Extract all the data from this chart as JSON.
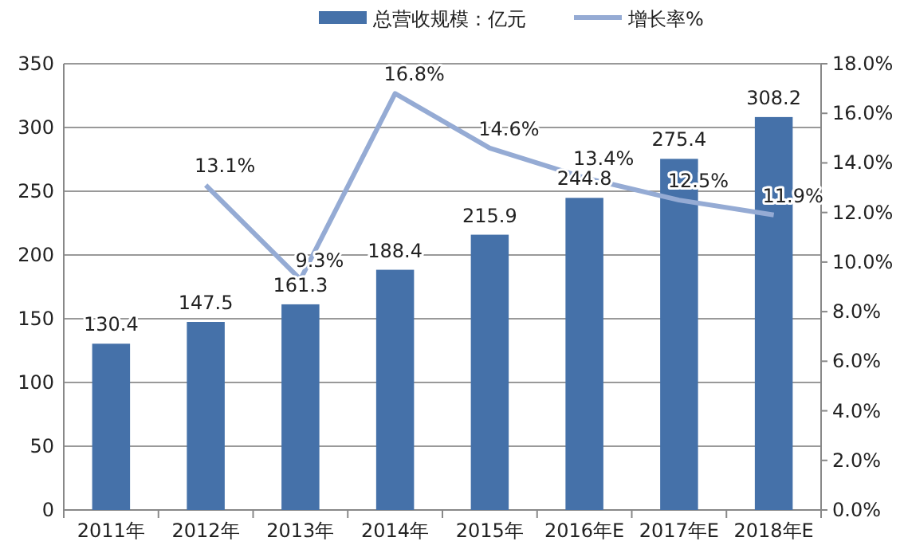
{
  "chart_data": {
    "type": "bar",
    "categories": [
      "2011年",
      "2012年",
      "2013年",
      "2014年",
      "2015年",
      "2016年E",
      "2017年E",
      "2018年E"
    ],
    "series": [
      {
        "name": "总营收规模：亿元",
        "color": "#4571a9",
        "values": [
          130.4,
          147.5,
          161.3,
          188.4,
          215.9,
          244.8,
          275.4,
          308.2
        ]
      },
      {
        "name": "增长率%",
        "type": "line",
        "axis": "y2",
        "color": "#95abd4",
        "values": [
          null,
          13.1,
          9.3,
          16.8,
          14.6,
          13.4,
          12.5,
          11.9
        ],
        "value_labels": [
          null,
          "13.1%",
          "9.3%",
          "16.8%",
          "14.6%",
          "13.4%",
          "12.5%",
          "11.9%"
        ]
      }
    ],
    "ylim": [
      0,
      350
    ],
    "yticks": [
      0,
      50,
      100,
      150,
      200,
      250,
      300,
      350
    ],
    "y2lim": [
      0,
      18
    ],
    "y2ticks": [
      {
        "value": 0,
        "label": "0.0%"
      },
      {
        "value": 2,
        "label": "2.0%"
      },
      {
        "value": 4,
        "label": "4.0%"
      },
      {
        "value": 6,
        "label": "6.0%"
      },
      {
        "value": 8,
        "label": "8.0%"
      },
      {
        "value": 10,
        "label": "10.0%"
      },
      {
        "value": 12,
        "label": "12.0%"
      },
      {
        "value": 14,
        "label": "14.0%"
      },
      {
        "value": 16,
        "label": "16.0%"
      },
      {
        "value": 18,
        "label": "18.0%"
      }
    ],
    "grid": "y",
    "legend": "top",
    "data_labels": true,
    "marker": "none",
    "line_style": "solid"
  }
}
